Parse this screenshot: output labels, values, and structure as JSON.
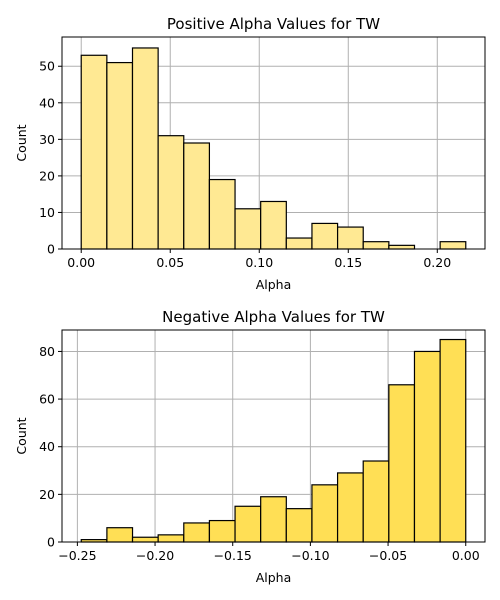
{
  "chart_data": [
    {
      "type": "bar",
      "title": "Positive Alpha Values for TW",
      "xlabel": "Alpha",
      "ylabel": "Count",
      "bar_color": "#ffe993",
      "bin_edges": [
        0.0,
        0.0144,
        0.0288,
        0.0432,
        0.0576,
        0.072,
        0.0864,
        0.1008,
        0.1152,
        0.1296,
        0.144,
        0.1584,
        0.1728,
        0.1872,
        0.2016,
        0.216
      ],
      "values": [
        53,
        51,
        55,
        31,
        29,
        19,
        11,
        13,
        3,
        7,
        6,
        2,
        1,
        0,
        2
      ],
      "xlim": [
        -0.0108,
        0.2268
      ],
      "ylim": [
        0,
        58
      ],
      "xticks": [
        0.0,
        0.05,
        0.1,
        0.15,
        0.2
      ],
      "xtick_labels": [
        "0.00",
        "0.05",
        "0.10",
        "0.15",
        "0.20"
      ],
      "yticks": [
        0,
        10,
        20,
        30,
        40,
        50
      ],
      "ytick_labels": [
        "0",
        "10",
        "20",
        "30",
        "40",
        "50"
      ],
      "grid": true
    },
    {
      "type": "bar",
      "title": "Negative Alpha Values for TW",
      "xlabel": "Alpha",
      "ylabel": "Count",
      "bar_color": "#ffdf55",
      "bin_edges": [
        -0.2475,
        -0.231,
        -0.2145,
        -0.198,
        -0.1815,
        -0.165,
        -0.1485,
        -0.132,
        -0.1155,
        -0.099,
        -0.0825,
        -0.066,
        -0.0495,
        -0.033,
        -0.0165,
        0.0
      ],
      "values": [
        1,
        6,
        2,
        3,
        8,
        9,
        15,
        19,
        14,
        24,
        29,
        34,
        66,
        80,
        85
      ],
      "xlim": [
        -0.2599,
        0.0124
      ],
      "ylim": [
        0,
        89
      ],
      "xticks": [
        -0.25,
        -0.2,
        -0.15,
        -0.1,
        -0.05,
        0.0
      ],
      "xtick_labels": [
        "−0.25",
        "−0.20",
        "−0.15",
        "−0.10",
        "−0.05",
        "0.00"
      ],
      "yticks": [
        0,
        20,
        40,
        60,
        80
      ],
      "ytick_labels": [
        "0",
        "20",
        "40",
        "60",
        "80"
      ],
      "grid": true
    }
  ]
}
